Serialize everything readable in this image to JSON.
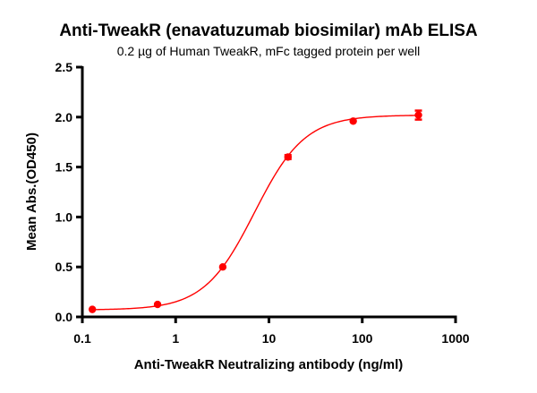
{
  "chart_data": {
    "type": "scatter",
    "title": "Anti-TweakR (enavatuzumab biosimilar) mAb ELISA",
    "subtitle": "0.2 µg of Human TweakR, mFc tagged protein per well",
    "xlabel": "Anti-TweakR Neutralizing antibody (ng/ml)",
    "ylabel": "Mean Abs.(OD450)",
    "xscale": "log",
    "xlim": [
      0.1,
      1000
    ],
    "ylim": [
      0,
      2.5
    ],
    "xticks": [
      0.1,
      1,
      10,
      100,
      1000
    ],
    "xtick_labels": [
      "0.1",
      "1",
      "10",
      "100",
      "1000"
    ],
    "yticks": [
      0,
      0.5,
      1,
      1.5,
      2,
      2.5
    ],
    "ytick_labels": [
      "0.0",
      "0.5",
      "1.0",
      "1.5",
      "2.0",
      "2.5"
    ],
    "grid": false,
    "color": "#ff0000",
    "points": [
      {
        "x": 0.128,
        "y": 0.075
      },
      {
        "x": 0.64,
        "y": 0.125
      },
      {
        "x": 3.2,
        "y": 0.5
      },
      {
        "x": 16,
        "y": 1.6,
        "err": 0.02
      },
      {
        "x": 80,
        "y": 1.96
      },
      {
        "x": 400,
        "y": 2.02,
        "err": 0.045
      }
    ],
    "fit": {
      "model": "4PL",
      "bottom": 0.07,
      "top": 2.02,
      "ec50": 7.0,
      "hill": 1.61
    }
  }
}
